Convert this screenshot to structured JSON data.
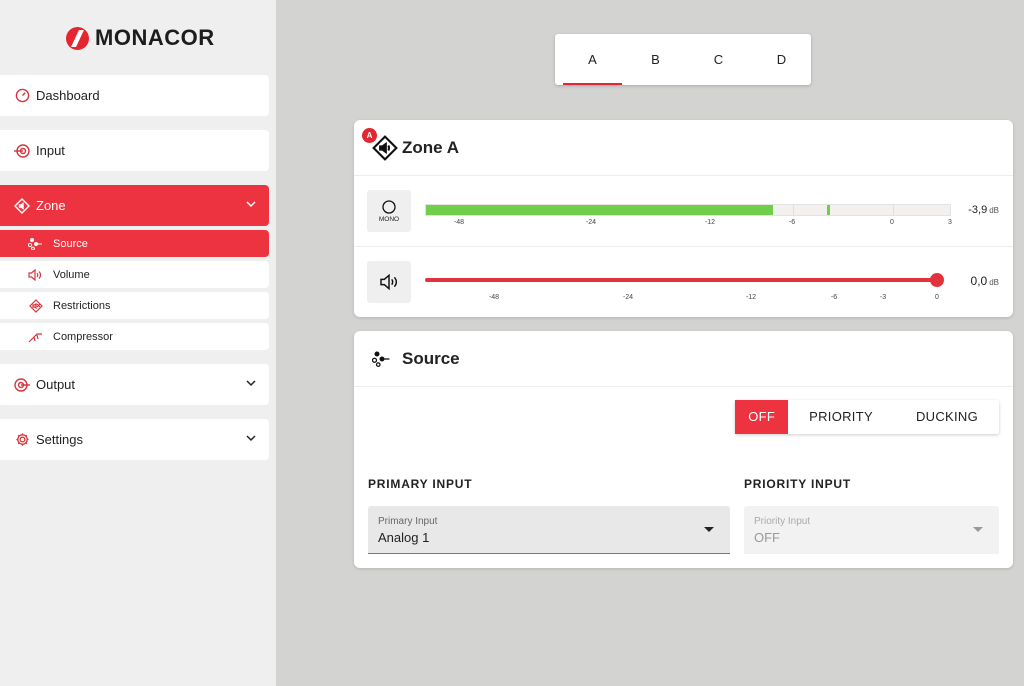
{
  "brand": {
    "name": "MONACOR",
    "accent": "#e3262f"
  },
  "sidebar": {
    "items": [
      {
        "label": "Dashboard",
        "icon": "gauge-icon"
      },
      {
        "label": "Input",
        "icon": "input-icon"
      },
      {
        "label": "Zone",
        "icon": "zone-speaker-icon",
        "expanded": true,
        "active": true
      },
      {
        "label": "Output",
        "icon": "output-icon"
      },
      {
        "label": "Settings",
        "icon": "gear-icon"
      }
    ],
    "subitems": [
      {
        "label": "Source",
        "icon": "source-icon",
        "active": true
      },
      {
        "label": "Volume",
        "icon": "volume-icon"
      },
      {
        "label": "Restrictions",
        "icon": "restrictions-icon"
      },
      {
        "label": "Compressor",
        "icon": "compressor-icon"
      }
    ]
  },
  "zone_tabs": {
    "items": [
      "A",
      "B",
      "C",
      "D"
    ],
    "active": "A"
  },
  "zone_card": {
    "badge": "A",
    "title": "Zone A",
    "meter": {
      "mode_label": "MONO",
      "ticks": [
        "-48",
        "-24",
        "-12",
        "-6",
        "0",
        "3"
      ],
      "level_db": -7.5,
      "peak_db": -3.9,
      "readout": "-3,9",
      "unit": "dB",
      "color": "#6fcf4a"
    },
    "volume": {
      "ticks": [
        "-48",
        "-24",
        "-12",
        "-6",
        "-3",
        "0"
      ],
      "value_db": 0,
      "readout": "0,0",
      "unit": "dB"
    }
  },
  "source_card": {
    "title": "Source",
    "modes": [
      "OFF",
      "PRIORITY",
      "DUCKING"
    ],
    "active_mode": "OFF",
    "primary": {
      "heading": "PRIMARY INPUT",
      "field_label": "Primary Input",
      "value": "Analog 1"
    },
    "priority": {
      "heading": "PRIORITY INPUT",
      "field_label": "Priority Input",
      "value": "OFF",
      "disabled": true
    }
  }
}
